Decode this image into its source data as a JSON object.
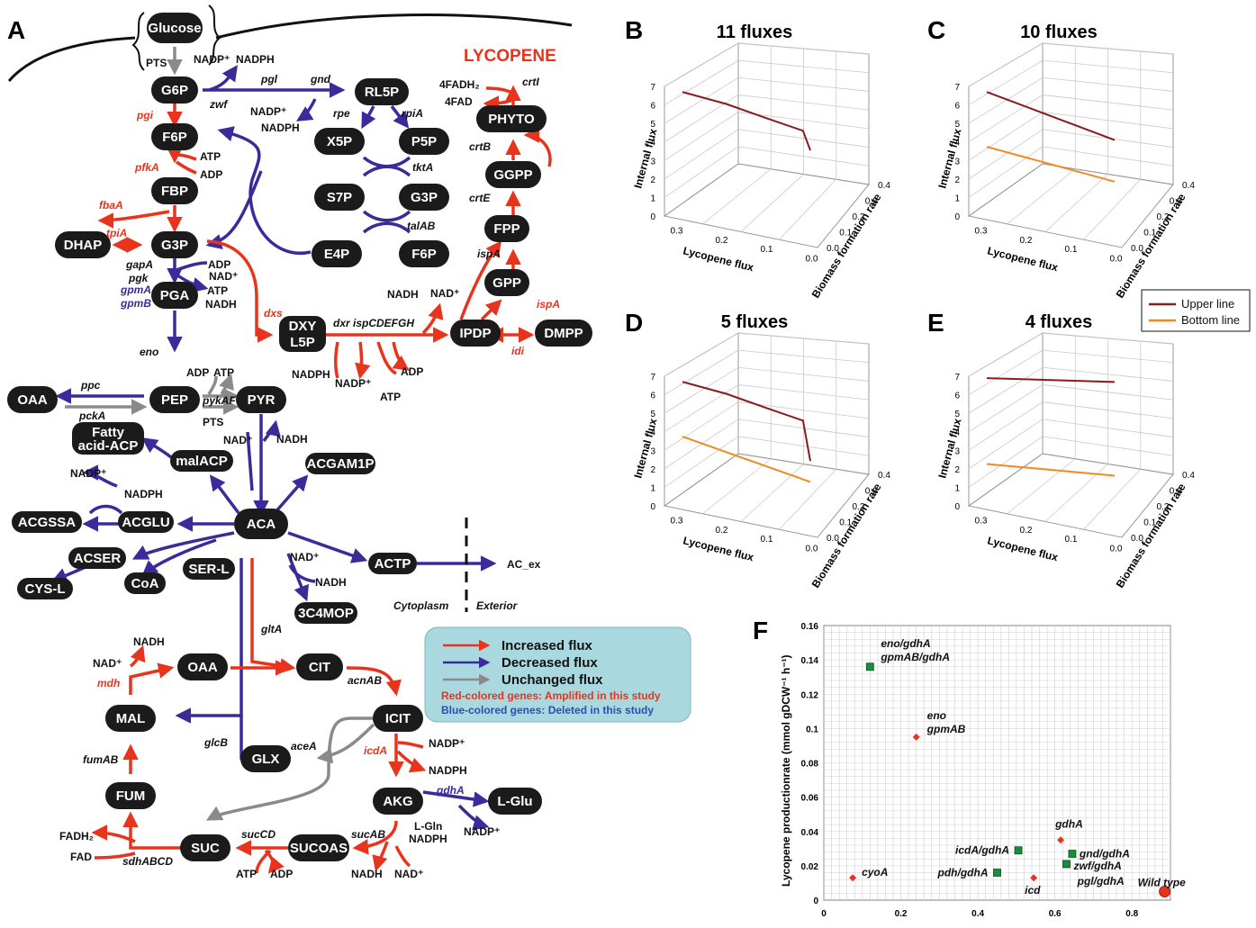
{
  "panels": {
    "A": "A",
    "B": "B",
    "C": "C",
    "D": "D",
    "E": "E",
    "F": "F"
  },
  "pathway": {
    "title": "LYCOPENE",
    "nodes": [
      {
        "id": "glucose",
        "label": "Glucose"
      },
      {
        "id": "g6p",
        "label": "G6P"
      },
      {
        "id": "f6p",
        "label": "F6P"
      },
      {
        "id": "fbp",
        "label": "FBP"
      },
      {
        "id": "dhap",
        "label": "DHAP"
      },
      {
        "id": "g3p",
        "label": "G3P"
      },
      {
        "id": "pga",
        "label": "PGA"
      },
      {
        "id": "pep",
        "label": "PEP"
      },
      {
        "id": "pyr",
        "label": "PYR"
      },
      {
        "id": "oaa",
        "label": "OAA"
      },
      {
        "id": "fatty",
        "label": "Fatty"
      },
      {
        "id": "fatty2",
        "label": "acid-ACP"
      },
      {
        "id": "malacp",
        "label": "malACP"
      },
      {
        "id": "acgam1p",
        "label": "ACGAM1P"
      },
      {
        "id": "acgssa",
        "label": "ACGSSA"
      },
      {
        "id": "acglu",
        "label": "ACGLU"
      },
      {
        "id": "aca",
        "label": "ACA"
      },
      {
        "id": "acser",
        "label": "ACSER"
      },
      {
        "id": "serl",
        "label": "SER-L"
      },
      {
        "id": "cysl",
        "label": "CYS-L"
      },
      {
        "id": "coa",
        "label": "CoA"
      },
      {
        "id": "actp",
        "label": "ACTP"
      },
      {
        "id": "c4mop",
        "label": "3C4MOP"
      },
      {
        "id": "oaa2",
        "label": "OAA"
      },
      {
        "id": "cit",
        "label": "CIT"
      },
      {
        "id": "icit",
        "label": "ICIT"
      },
      {
        "id": "mal",
        "label": "MAL"
      },
      {
        "id": "glx",
        "label": "GLX"
      },
      {
        "id": "akg",
        "label": "AKG"
      },
      {
        "id": "lglu",
        "label": "L-Glu"
      },
      {
        "id": "fum",
        "label": "FUM"
      },
      {
        "id": "suc",
        "label": "SUC"
      },
      {
        "id": "sucoas",
        "label": "SUCOAS"
      },
      {
        "id": "rl5p",
        "label": "RL5P"
      },
      {
        "id": "x5p",
        "label": "X5P"
      },
      {
        "id": "p5p",
        "label": "P5P"
      },
      {
        "id": "s7p",
        "label": "S7P"
      },
      {
        "id": "g3p2",
        "label": "G3P"
      },
      {
        "id": "e4p",
        "label": "E4P"
      },
      {
        "id": "f6p2",
        "label": "F6P"
      },
      {
        "id": "dxy",
        "label": "DXY"
      },
      {
        "id": "dxy2",
        "label": "L5P"
      },
      {
        "id": "ipdp",
        "label": "IPDP"
      },
      {
        "id": "dmpp",
        "label": "DMPP"
      },
      {
        "id": "gpp",
        "label": "GPP"
      },
      {
        "id": "fpp",
        "label": "FPP"
      },
      {
        "id": "ggpp",
        "label": "GGPP"
      },
      {
        "id": "phyto",
        "label": "PHYTO"
      }
    ],
    "texts": {
      "pts": "PTS",
      "pts2": "PTS",
      "nadp1": "NADP⁺",
      "nadph1": "NADPH",
      "nadp2": "NADP⁺",
      "nadph2": "NADPH",
      "atp1": "ATP",
      "adp1": "ADP",
      "adp2": "ADP",
      "nad1": "NAD⁺",
      "atp2": "ATP",
      "nadh1": "NADH",
      "adp3": "ADP",
      "atp3": "ATP",
      "nad2": "NAD⁺",
      "nadh2": "NADH",
      "nadp3": "NADP⁺",
      "nadph3": "NADPH",
      "nad3": "NAD⁺",
      "nadh3": "NADH",
      "nadh4": "NADH",
      "nad4": "NAD⁺",
      "nadp4": "NADP⁺",
      "nadph4": "NADPH",
      "lgln": "L-Gln",
      "nadph5": "NADPH",
      "nadp5": "NADP⁺",
      "fadh2": "FADH₂",
      "fad": "FAD",
      "atp4": "ATP",
      "adp4": "ADP",
      "nadh5": "NADH",
      "nad5": "NAD⁺",
      "nadph6": "NADPH",
      "nadp6": "NADP⁺",
      "adp5": "ADP",
      "atp5": "ATP",
      "nadh6": "NADH",
      "nad6": "NAD⁺",
      "fadh2b": "4FADH₂",
      "fadb": "4FAD",
      "acex": "AC_ex",
      "cytoplasm": "Cytoplasm",
      "exterior": "Exterior"
    },
    "genes": {
      "zwf": "zwf",
      "pgl": "pgl",
      "gnd": "gnd",
      "rpe": "rpe",
      "rpiA": "rpiA",
      "tktA": "tktA",
      "talAB": "talAB",
      "pgi": "pgi",
      "pfkA": "pfkA",
      "fbaA": "fbaA",
      "tpiA": "tpiA",
      "gapA": "gapA",
      "pgk": "pgk",
      "gpmA": "gpmA",
      "gpmB": "gpmB",
      "eno": "eno",
      "ppc": "ppc",
      "pckA": "pckA",
      "pykAF": "pykAF",
      "dxs": "dxs",
      "dxr": "dxr ispCDEFGH",
      "idi": "idi",
      "ispA1": "ispA",
      "ispA2": "ispA",
      "crtE": "crtE",
      "crtB": "crtB",
      "crtI": "crtI",
      "gltA": "gltA",
      "acnAB": "acnAB",
      "mdh": "mdh",
      "glcB": "glcB",
      "aceA": "aceA",
      "icdA": "icdA",
      "gdhA": "gdhA",
      "fumAB": "fumAB",
      "sdhABCD": "sdhABCD",
      "sucCD": "sucCD",
      "sucAB": "sucAB"
    },
    "legend": {
      "increased": "Increased flux",
      "decreased": "Decreased flux",
      "unchanged": "Unchanged flux",
      "red_genes": "Red-colored genes: Amplified in this study",
      "blue_genes": "Blue-colored genes: Deleted in this study"
    }
  },
  "colors": {
    "increase": "#e8341c",
    "decrease": "#3b2b9a",
    "unchanged": "#8a8a8a",
    "upper": "#8b1a1a",
    "bottom": "#f08a1c",
    "legend_bg": "#a9d9df",
    "marker_red": "#e8341c",
    "marker_green": "#1e8a3c"
  },
  "chart_data": [
    {
      "panel": "B",
      "type": "line",
      "title": "11 fluxes",
      "xlabel": "Lycopene flux",
      "ylabel": "Internal flux",
      "zlabel": "Biomass formation rate",
      "x_ticks": [
        "0.3",
        "0.2",
        "0.1",
        "0.0"
      ],
      "y_ticks": [
        "0",
        "1",
        "2",
        "3",
        "4",
        "5",
        "6",
        "7"
      ],
      "z_ticks": [
        "0.0",
        "0.1",
        "0.2",
        "0.3",
        "0.4"
      ],
      "series": [
        {
          "x": [
            0.35,
            0.23,
            0.12,
            0.02,
            0.0
          ],
          "y": [
            6.3,
            5.9,
            5.4,
            5.0,
            4.1
          ]
        }
      ]
    },
    {
      "panel": "C",
      "type": "line",
      "title": "10 fluxes",
      "xlabel": "Lycopene flux",
      "ylabel": "Internal flux",
      "zlabel": "Biomass formation rate",
      "x_ticks": [
        "0.3",
        "0.2",
        "0.1",
        "0.0"
      ],
      "y_ticks": [
        "0",
        "1",
        "2",
        "3",
        "4",
        "5",
        "6",
        "7"
      ],
      "z_ticks": [
        "0.0",
        "0.1",
        "0.2",
        "0.3",
        "0.4"
      ],
      "series": [
        {
          "name": "Upper line",
          "x": [
            0.35,
            0.0
          ],
          "y": [
            6.3,
            4.6
          ]
        },
        {
          "name": "Bottom line",
          "x": [
            0.35,
            0.0
          ],
          "y": [
            3.3,
            2.6
          ]
        }
      ]
    },
    {
      "panel": "D",
      "type": "line",
      "title": "5 fluxes",
      "xlabel": "Lycopene flux",
      "ylabel": "Internal flux",
      "zlabel": "Biomass formation rate",
      "x_ticks": [
        "0.3",
        "0.2",
        "0.1",
        "0.0"
      ],
      "y_ticks": [
        "0",
        "1",
        "2",
        "3",
        "4",
        "5",
        "6",
        "7"
      ],
      "z_ticks": [
        "0.0",
        "0.1",
        "0.2",
        "0.3",
        "0.4"
      ],
      "series": [
        {
          "name": "Upper line",
          "x": [
            0.35,
            0.23,
            0.12,
            0.02,
            0.0
          ],
          "y": [
            6.3,
            5.9,
            5.4,
            5.0,
            3.1
          ]
        },
        {
          "name": "Bottom line",
          "x": [
            0.35,
            0.0
          ],
          "y": [
            3.3,
            2.1
          ]
        }
      ]
    },
    {
      "panel": "E",
      "type": "line",
      "title": "4 fluxes",
      "xlabel": "Lycopene flux",
      "ylabel": "Internal flux",
      "zlabel": "Biomass formation rate",
      "x_ticks": [
        "0.3",
        "0.2",
        "0.1",
        "0.0"
      ],
      "y_ticks": [
        "0",
        "1",
        "2",
        "3",
        "4",
        "5",
        "6",
        "7"
      ],
      "z_ticks": [
        "0.0",
        "0.1",
        "0.2",
        "0.3",
        "0.4"
      ],
      "series": [
        {
          "name": "Upper line",
          "x": [
            0.35,
            0.0
          ],
          "y": [
            6.5,
            6.9
          ]
        },
        {
          "name": "Bottom line",
          "x": [
            0.35,
            0.0
          ],
          "y": [
            1.8,
            2.4
          ]
        }
      ]
    },
    {
      "panel": "F",
      "type": "scatter",
      "ylabel": "Lycopene productionrate (mmol gDCW⁻¹ h⁻¹)",
      "x_ticks": [
        "0",
        "0.2",
        "0.4",
        "0.6",
        "0.8"
      ],
      "y_ticks": [
        "0",
        "0.02",
        "0.04",
        "0.06",
        "0.08",
        "0.1",
        "0.12",
        "0.14",
        "0.16"
      ],
      "xlim": [
        0,
        0.9
      ],
      "ylim": [
        0,
        0.16
      ],
      "points": [
        {
          "label": "eno/gdhA",
          "label2": "gpmAB/gdhA",
          "x": 0.12,
          "y": 0.136,
          "marker": "square"
        },
        {
          "label": "eno",
          "label2": "gpmAB",
          "x": 0.24,
          "y": 0.095,
          "marker": "diamond"
        },
        {
          "label": "gdhA",
          "x": 0.615,
          "y": 0.035,
          "marker": "diamond"
        },
        {
          "label": "icdA/gdhA",
          "x": 0.505,
          "y": 0.029,
          "marker": "square"
        },
        {
          "label": "gnd/gdhA",
          "x": 0.645,
          "y": 0.027,
          "marker": "square"
        },
        {
          "label": "zwf/gdhA",
          "x": 0.63,
          "y": 0.021,
          "marker": "square"
        },
        {
          "label": "pdh/gdhA",
          "x": 0.45,
          "y": 0.016,
          "marker": "square"
        },
        {
          "label": "cyoA",
          "x": 0.075,
          "y": 0.013,
          "marker": "diamond"
        },
        {
          "label": "icd",
          "x": 0.545,
          "y": 0.013,
          "marker": "diamond"
        },
        {
          "label": "pgl/gdhA",
          "x": 0.635,
          "y": 0.012,
          "marker": "none"
        },
        {
          "label": "Wild type",
          "x": 0.885,
          "y": 0.005,
          "marker": "circle"
        }
      ]
    }
  ],
  "legend_lines": {
    "upper": "Upper line",
    "bottom": "Bottom line"
  }
}
